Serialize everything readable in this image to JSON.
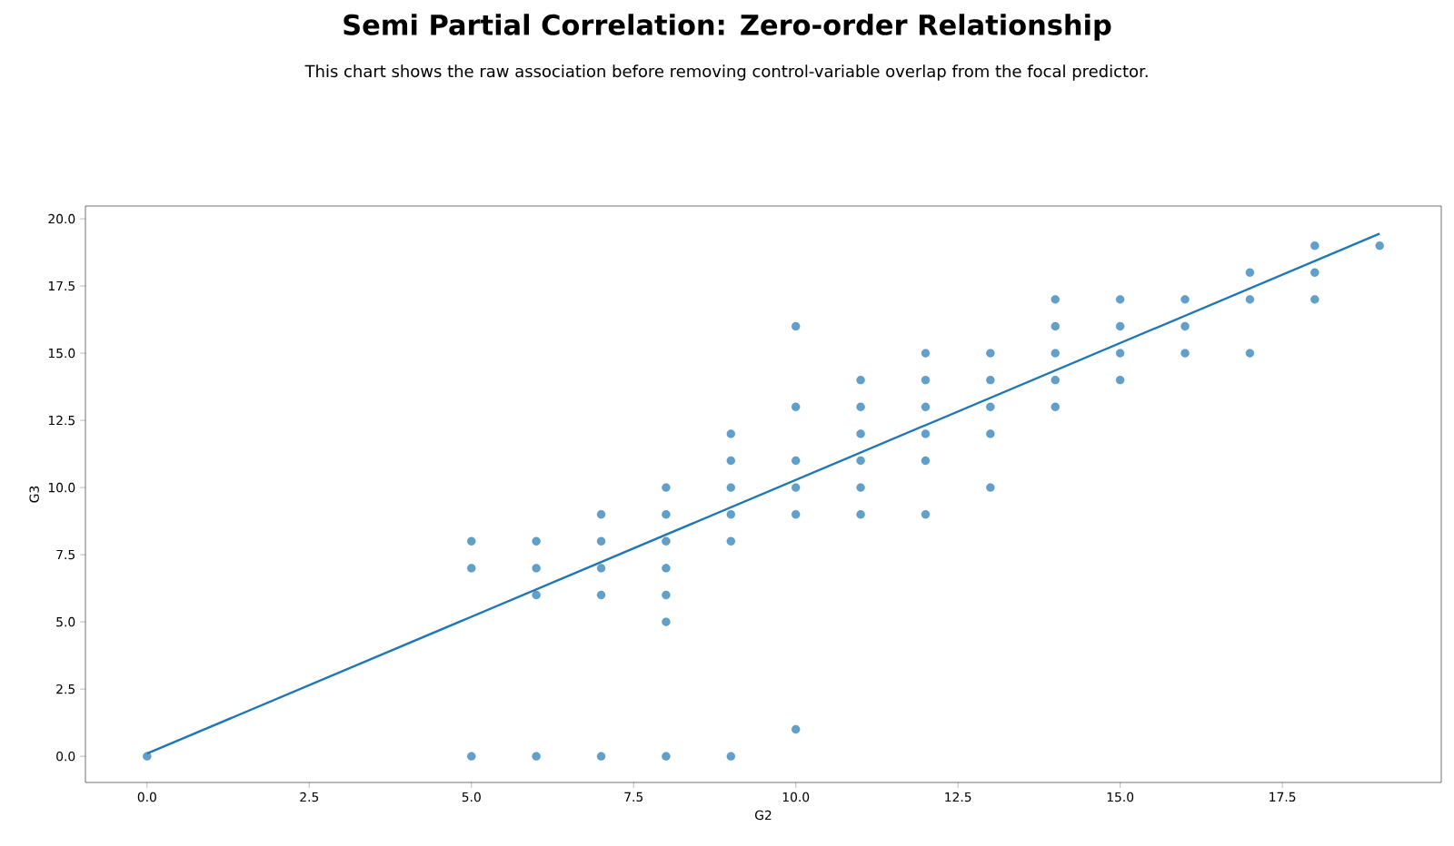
{
  "chart_data": {
    "type": "scatter",
    "title": "Semi Partial Correlation: Zero-order Relationship",
    "subtitle": "This chart shows the raw association before removing control-variable overlap from the focal predictor.",
    "xlabel": "G2",
    "ylabel": "G3",
    "xlim": [
      -0.95,
      19.95
    ],
    "ylim": [
      -0.975,
      20.475
    ],
    "xticks": [
      {
        "value": 0,
        "label": "0.0"
      },
      {
        "value": 2.5,
        "label": "2.5"
      },
      {
        "value": 5,
        "label": "5.0"
      },
      {
        "value": 7.5,
        "label": "7.5"
      },
      {
        "value": 10,
        "label": "10.0"
      },
      {
        "value": 12.5,
        "label": "12.5"
      },
      {
        "value": 15,
        "label": "15.0"
      },
      {
        "value": 17.5,
        "label": "17.5"
      }
    ],
    "yticks": [
      {
        "value": 0,
        "label": "0.0"
      },
      {
        "value": 2.5,
        "label": "2.5"
      },
      {
        "value": 5,
        "label": "5.0"
      },
      {
        "value": 7.5,
        "label": "7.5"
      },
      {
        "value": 10,
        "label": "10.0"
      },
      {
        "value": 12.5,
        "label": "12.5"
      },
      {
        "value": 15,
        "label": "15.0"
      },
      {
        "value": 17.5,
        "label": "17.5"
      },
      {
        "value": 20,
        "label": "20.0"
      }
    ],
    "series": [
      {
        "marker": "circle",
        "color": "#1f77b4",
        "x": [
          0,
          5,
          5,
          5,
          6,
          6,
          6,
          6,
          7,
          7,
          7,
          7,
          7,
          8,
          8,
          8,
          8,
          8,
          8,
          8,
          9,
          9,
          9,
          9,
          9,
          9,
          10,
          10,
          10,
          10,
          10,
          10,
          11,
          11,
          11,
          11,
          11,
          11,
          12,
          12,
          12,
          12,
          12,
          12,
          13,
          13,
          13,
          13,
          13,
          14,
          14,
          14,
          14,
          14,
          15,
          15,
          15,
          15,
          16,
          16,
          16,
          17,
          17,
          17,
          18,
          18,
          18,
          19
        ],
        "values": [
          0,
          8,
          7,
          0,
          8,
          7,
          6,
          0,
          9,
          8,
          7,
          6,
          0,
          10,
          9,
          8,
          7,
          6,
          5,
          0,
          12,
          11,
          10,
          9,
          8,
          0,
          16,
          13,
          11,
          10,
          9,
          1,
          14,
          13,
          12,
          11,
          10,
          9,
          15,
          14,
          13,
          12,
          11,
          9,
          15,
          14,
          13,
          12,
          10,
          17,
          16,
          15,
          14,
          13,
          17,
          16,
          15,
          14,
          17,
          16,
          15,
          18,
          17,
          15,
          19,
          18,
          17,
          19
        ]
      },
      {
        "type": "line",
        "marker": "none",
        "color": "#1f77b4",
        "x": [
          0,
          19
        ],
        "values": [
          0.1,
          19.45
        ]
      }
    ]
  }
}
